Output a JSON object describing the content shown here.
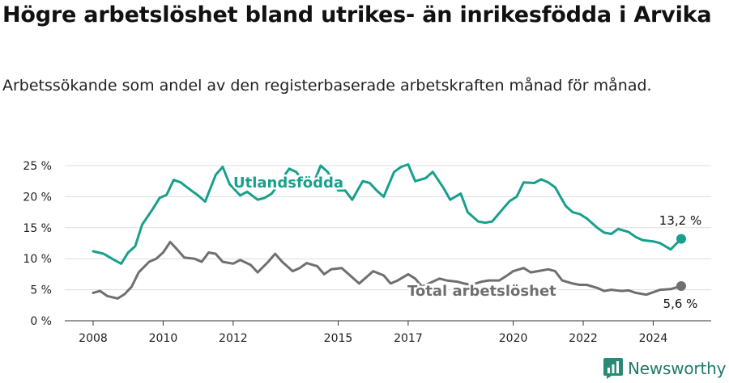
{
  "title": "Högre arbetslöshet bland utrikes- än inrikesfödda i Arvika",
  "subtitle": "Arbetssökande som andel av den registerbaserade arbetskraften månad för månad.",
  "brand": "Newsworthy",
  "colors": {
    "foreign": "#17a08c",
    "total": "#6f6f73",
    "grid": "#dddddd",
    "brand": "#1f7a6a"
  },
  "chart_data": {
    "type": "line",
    "y_ticks": [
      "0 %",
      "5 %",
      "10 %",
      "15 %",
      "20 %",
      "25 %"
    ],
    "x_ticks": [
      "2008",
      "2010",
      "2012",
      "2015",
      "2017",
      "2020",
      "2022",
      "2024"
    ],
    "ylim": [
      0,
      26
    ],
    "grid": true,
    "series": [
      {
        "name": "Utlandsfödda",
        "end_label": "13,2 %",
        "x": [
          2008.0,
          2008.3,
          2008.6,
          2008.8,
          2009.0,
          2009.2,
          2009.4,
          2009.7,
          2009.9,
          2010.1,
          2010.3,
          2010.5,
          2010.8,
          2011.0,
          2011.2,
          2011.5,
          2011.7,
          2011.9,
          2012.2,
          2012.4,
          2012.7,
          2012.9,
          2013.1,
          2013.3,
          2013.6,
          2013.8,
          2014.0,
          2014.3,
          2014.5,
          2014.7,
          2015.0,
          2015.2,
          2015.4,
          2015.7,
          2015.9,
          2016.1,
          2016.3,
          2016.6,
          2016.8,
          2017.0,
          2017.2,
          2017.5,
          2017.7,
          2018.0,
          2018.2,
          2018.5,
          2018.7,
          2019.0,
          2019.2,
          2019.4,
          2019.7,
          2019.9,
          2020.1,
          2020.3,
          2020.6,
          2020.8,
          2021.0,
          2021.2,
          2021.5,
          2021.7,
          2021.9,
          2022.1,
          2022.4,
          2022.6,
          2022.8,
          2023.0,
          2023.3,
          2023.5,
          2023.7,
          2024.0,
          2024.2,
          2024.5,
          2024.8
        ],
        "values": [
          11.2,
          10.8,
          9.8,
          9.2,
          11.0,
          12.0,
          15.5,
          18.0,
          19.8,
          20.3,
          22.7,
          22.3,
          21.0,
          20.2,
          19.2,
          23.5,
          24.8,
          22.0,
          20.2,
          20.8,
          19.5,
          19.8,
          20.5,
          22.0,
          24.5,
          24.0,
          22.5,
          22.2,
          25.0,
          24.0,
          21.0,
          21.0,
          19.5,
          22.5,
          22.2,
          21.0,
          20.0,
          24.0,
          24.8,
          25.2,
          22.5,
          23.0,
          24.0,
          21.5,
          19.5,
          20.5,
          17.5,
          16.0,
          15.8,
          16.0,
          18.0,
          19.3,
          20.0,
          22.3,
          22.2,
          22.8,
          22.3,
          21.5,
          18.5,
          17.5,
          17.2,
          16.5,
          15.0,
          14.2,
          14.0,
          14.8,
          14.3,
          13.5,
          13.0,
          12.8,
          12.5,
          11.5,
          13.2
        ]
      },
      {
        "name": "Total arbetslöshet",
        "end_label": "5,6 %",
        "x": [
          2008.0,
          2008.2,
          2008.4,
          2008.7,
          2008.9,
          2009.1,
          2009.3,
          2009.6,
          2009.8,
          2010.0,
          2010.2,
          2010.4,
          2010.6,
          2010.9,
          2011.1,
          2011.3,
          2011.5,
          2011.7,
          2012.0,
          2012.2,
          2012.5,
          2012.7,
          2013.0,
          2013.2,
          2013.4,
          2013.7,
          2013.9,
          2014.1,
          2014.4,
          2014.6,
          2014.8,
          2015.1,
          2015.3,
          2015.6,
          2015.8,
          2016.0,
          2016.3,
          2016.5,
          2016.7,
          2017.0,
          2017.2,
          2017.4,
          2017.7,
          2017.9,
          2018.1,
          2018.4,
          2018.6,
          2018.8,
          2019.1,
          2019.3,
          2019.6,
          2019.8,
          2020.0,
          2020.3,
          2020.5,
          2020.7,
          2021.0,
          2021.2,
          2021.4,
          2021.7,
          2021.9,
          2022.1,
          2022.4,
          2022.6,
          2022.8,
          2023.1,
          2023.3,
          2023.5,
          2023.8,
          2024.0,
          2024.2,
          2024.5,
          2024.8
        ],
        "values": [
          4.5,
          4.8,
          4.0,
          3.6,
          4.3,
          5.5,
          7.8,
          9.5,
          10.0,
          11.0,
          12.7,
          11.5,
          10.2,
          10.0,
          9.5,
          11.0,
          10.8,
          9.5,
          9.2,
          9.8,
          9.0,
          7.8,
          9.5,
          10.8,
          9.5,
          8.0,
          8.5,
          9.3,
          8.8,
          7.5,
          8.3,
          8.5,
          7.5,
          6.0,
          7.0,
          8.0,
          7.3,
          6.0,
          6.5,
          7.5,
          6.8,
          5.5,
          6.3,
          6.8,
          6.5,
          6.3,
          6.0,
          5.8,
          6.3,
          6.5,
          6.5,
          7.2,
          8.0,
          8.5,
          7.8,
          8.0,
          8.3,
          8.0,
          6.5,
          6.0,
          5.8,
          5.8,
          5.3,
          4.8,
          5.0,
          4.8,
          4.9,
          4.5,
          4.2,
          4.6,
          5.0,
          5.1,
          5.6
        ]
      }
    ]
  }
}
